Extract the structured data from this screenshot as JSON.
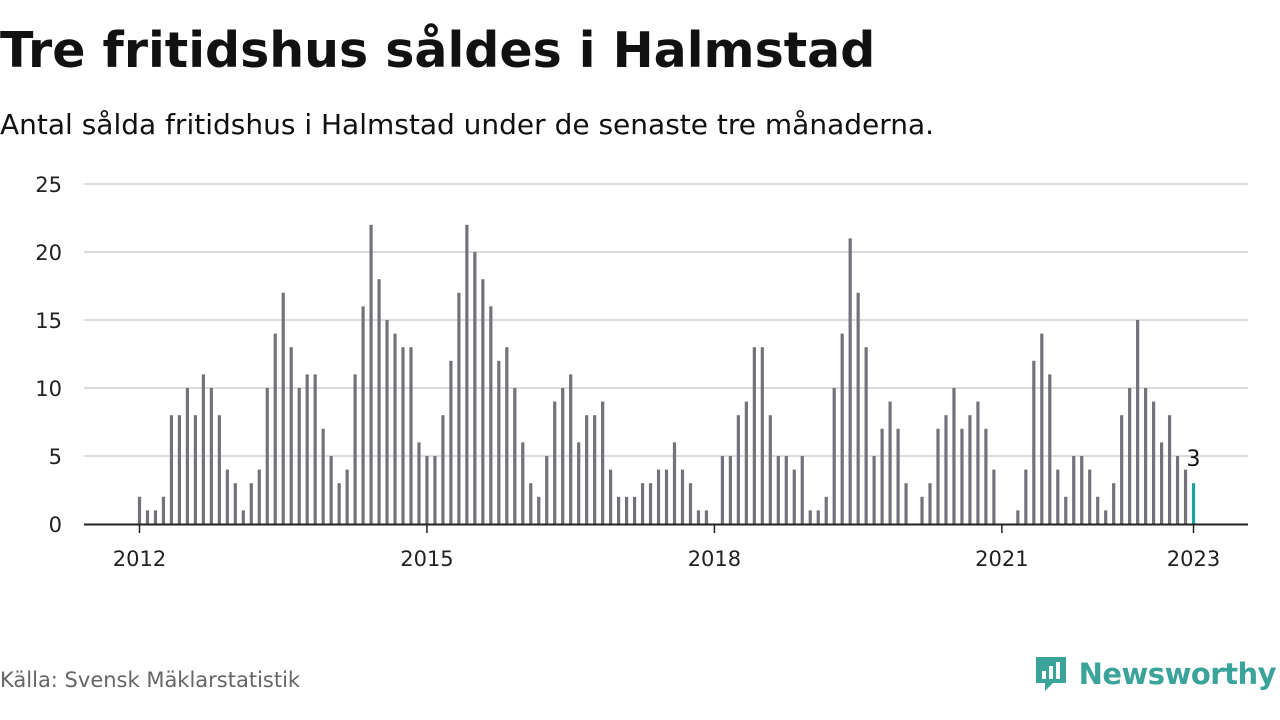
{
  "header": {
    "title": "Tre fritidshus såldes i Halmstad",
    "subtitle": "Antal sålda fritidshus i Halmstad under de senaste tre månaderna."
  },
  "footer": {
    "source": "Källa: Svensk Mäklarstatistik",
    "brand": "Newsworthy",
    "brand_icon": "newsworthy-logo-icon"
  },
  "colors": {
    "bar": "#737278",
    "highlight": "#1aa39b",
    "grid": "#dcdcdc",
    "axis": "#222222",
    "brand": "#3aa39a"
  },
  "chart_data": {
    "type": "bar",
    "frequency": "monthly",
    "start": "2012-01",
    "end": "2023-01",
    "ylim": [
      0,
      25
    ],
    "yticks": [
      0,
      5,
      10,
      15,
      20,
      25
    ],
    "xticks": [
      "2012",
      "2015",
      "2018",
      "2021",
      "2023"
    ],
    "grid": true,
    "values": [
      2,
      1,
      1,
      2,
      8,
      8,
      10,
      8,
      11,
      10,
      8,
      4,
      3,
      1,
      3,
      4,
      10,
      14,
      17,
      13,
      10,
      11,
      11,
      7,
      5,
      3,
      4,
      11,
      16,
      22,
      18,
      15,
      14,
      13,
      13,
      6,
      5,
      5,
      8,
      12,
      17,
      22,
      20,
      18,
      16,
      12,
      13,
      10,
      6,
      3,
      2,
      5,
      9,
      10,
      11,
      6,
      8,
      8,
      9,
      4,
      2,
      2,
      2,
      3,
      3,
      4,
      4,
      6,
      4,
      3,
      1,
      1,
      0,
      5,
      5,
      8,
      9,
      13,
      13,
      8,
      5,
      5,
      4,
      5,
      1,
      1,
      2,
      10,
      14,
      21,
      17,
      13,
      5,
      7,
      9,
      7,
      3,
      0,
      2,
      3,
      7,
      8,
      10,
      7,
      8,
      9,
      7,
      4,
      0,
      0,
      1,
      4,
      12,
      14,
      11,
      4,
      2,
      5,
      5,
      4,
      2,
      1,
      3,
      8,
      10,
      15,
      10,
      9,
      6,
      8,
      5,
      4,
      3
    ],
    "highlight_last": true,
    "annotation": "3"
  }
}
